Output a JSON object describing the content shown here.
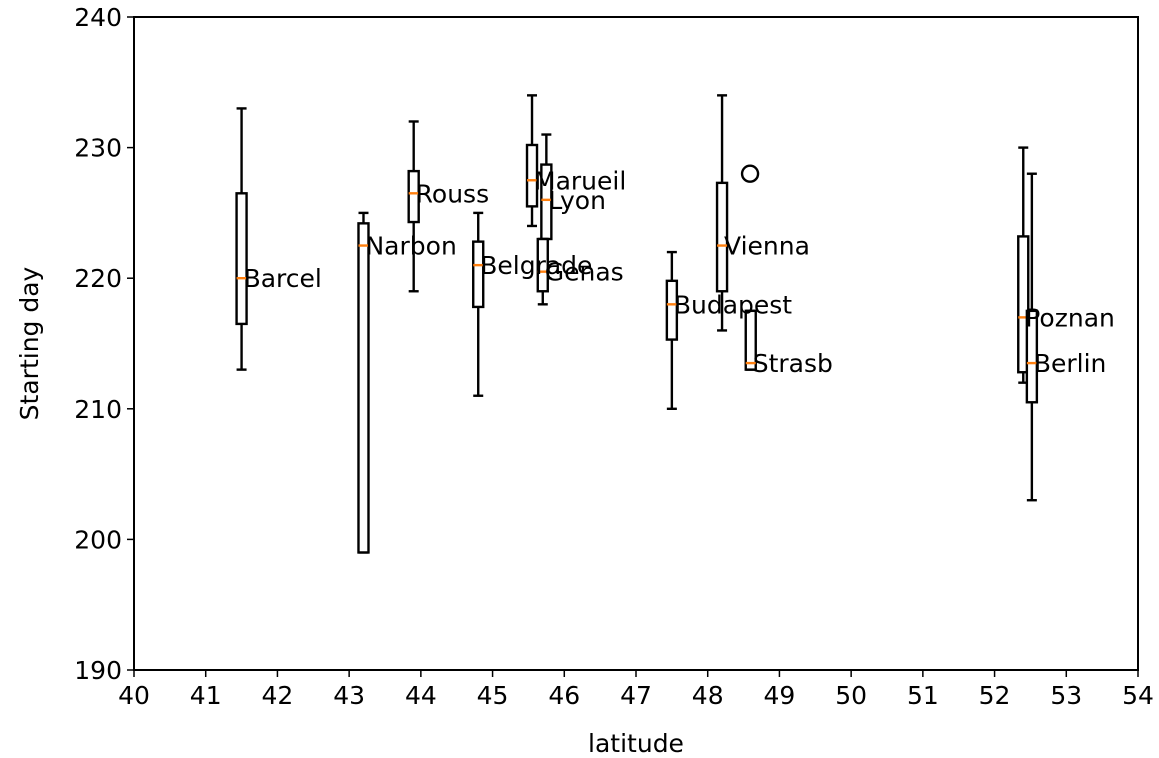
{
  "chart_data": {
    "type": "box",
    "xlabel": "latitude",
    "ylabel": "Starting day",
    "xlim": [
      40,
      54
    ],
    "ylim": [
      190,
      240
    ],
    "xticks": [
      40,
      41,
      42,
      43,
      44,
      45,
      46,
      47,
      48,
      49,
      50,
      51,
      52,
      53,
      54
    ],
    "yticks": [
      190,
      200,
      210,
      220,
      230,
      240
    ],
    "grid": false,
    "colors": {
      "box": "#000000",
      "median": "#ff7f0e",
      "flier": "#000000"
    },
    "boxes": [
      {
        "label": "Barcel",
        "x": 41.5,
        "whislo": 213,
        "q1": 216.5,
        "med": 220,
        "q3": 226.5,
        "whishi": 233,
        "fliers": []
      },
      {
        "label": "Narbon",
        "x": 43.2,
        "whislo": 199,
        "q1": 199,
        "med": 222.5,
        "q3": 224.2,
        "whishi": 225,
        "fliers": []
      },
      {
        "label": "Rouss",
        "x": 43.9,
        "whislo": 219,
        "q1": 224.3,
        "med": 226.5,
        "q3": 228.2,
        "whishi": 232,
        "fliers": []
      },
      {
        "label": "Belgrade",
        "x": 44.8,
        "whislo": 211,
        "q1": 217.8,
        "med": 221,
        "q3": 222.8,
        "whishi": 225,
        "fliers": []
      },
      {
        "label": "Marueil",
        "x": 45.55,
        "whislo": 224,
        "q1": 225.5,
        "med": 227.5,
        "q3": 230.2,
        "whishi": 234,
        "fliers": []
      },
      {
        "label": "Lyon",
        "x": 45.75,
        "whislo": 220,
        "q1": 223,
        "med": 226,
        "q3": 228.7,
        "whishi": 231,
        "fliers": []
      },
      {
        "label": "Genas",
        "x": 45.7,
        "whislo": 218,
        "q1": 219,
        "med": 220.5,
        "q3": 223,
        "whishi": 223,
        "fliers": []
      },
      {
        "label": "Budapest",
        "x": 47.5,
        "whislo": 210,
        "q1": 215.3,
        "med": 218,
        "q3": 219.8,
        "whishi": 222,
        "fliers": []
      },
      {
        "label": "Vienna",
        "x": 48.2,
        "whislo": 216,
        "q1": 219,
        "med": 222.5,
        "q3": 227.3,
        "whishi": 234,
        "fliers": [
          228
        ]
      },
      {
        "label": "Strasb",
        "x": 48.6,
        "whislo": 213,
        "q1": 213,
        "med": 213.5,
        "q3": 217.5,
        "whishi": 217.5,
        "fliers": []
      },
      {
        "label": "Poznan",
        "x": 52.4,
        "whislo": 212,
        "q1": 212.8,
        "med": 217,
        "q3": 223.2,
        "whishi": 230,
        "fliers": []
      },
      {
        "label": "Berlin",
        "x": 52.52,
        "whislo": 203,
        "q1": 210.5,
        "med": 213.5,
        "q3": 217.5,
        "whishi": 228,
        "fliers": []
      }
    ]
  }
}
